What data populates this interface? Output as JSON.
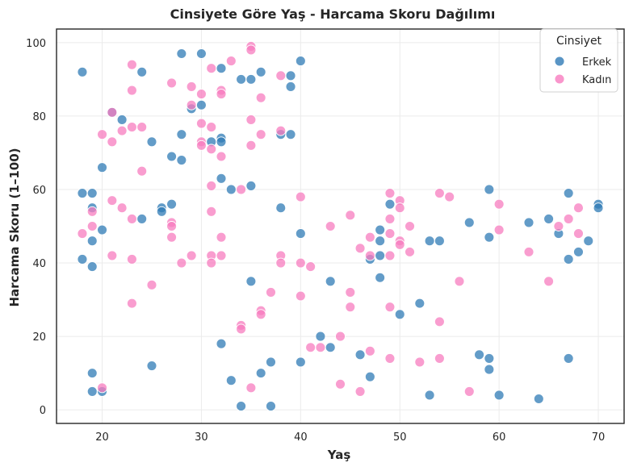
{
  "chart_data": {
    "type": "scatter",
    "title": "Cinsiyete Göre Yaş - Harcama Skoru Dağılımı",
    "xlabel": "Yaş",
    "ylabel": "Harcama Skoru (1–100)",
    "xlim": [
      15.4,
      72.6
    ],
    "ylim": [
      -3.7,
      103.7
    ],
    "x_ticks": [
      20,
      30,
      40,
      50,
      60,
      70
    ],
    "y_ticks": [
      0,
      20,
      40,
      60,
      80,
      100
    ],
    "grid": true,
    "legend": {
      "title": "Cinsiyet",
      "position": "top-right"
    },
    "series": [
      {
        "name": "Erkek",
        "color": "#2f7bb6",
        "points": [
          [
            18,
            92
          ],
          [
            18,
            59
          ],
          [
            18,
            41
          ],
          [
            19,
            59
          ],
          [
            19,
            55
          ],
          [
            19,
            46
          ],
          [
            19,
            39
          ],
          [
            19,
            10
          ],
          [
            19,
            5
          ],
          [
            20,
            66
          ],
          [
            20,
            49
          ],
          [
            20,
            5
          ],
          [
            21,
            81
          ],
          [
            22,
            79
          ],
          [
            24,
            92
          ],
          [
            24,
            52
          ],
          [
            25,
            73
          ],
          [
            25,
            12
          ],
          [
            26,
            55
          ],
          [
            26,
            54
          ],
          [
            27,
            69
          ],
          [
            27,
            56
          ],
          [
            28,
            97
          ],
          [
            28,
            75
          ],
          [
            28,
            68
          ],
          [
            29,
            82
          ],
          [
            30,
            97
          ],
          [
            30,
            83
          ],
          [
            31,
            73
          ],
          [
            32,
            93
          ],
          [
            32,
            74
          ],
          [
            32,
            73
          ],
          [
            32,
            63
          ],
          [
            32,
            18
          ],
          [
            33,
            60
          ],
          [
            33,
            8
          ],
          [
            34,
            90
          ],
          [
            34,
            1
          ],
          [
            35,
            90
          ],
          [
            35,
            61
          ],
          [
            35,
            35
          ],
          [
            36,
            92
          ],
          [
            36,
            10
          ],
          [
            37,
            13
          ],
          [
            37,
            1
          ],
          [
            38,
            75
          ],
          [
            38,
            55
          ],
          [
            39,
            91
          ],
          [
            39,
            88
          ],
          [
            39,
            75
          ],
          [
            40,
            95
          ],
          [
            40,
            48
          ],
          [
            40,
            13
          ],
          [
            42,
            20
          ],
          [
            43,
            35
          ],
          [
            43,
            17
          ],
          [
            46,
            15
          ],
          [
            47,
            41
          ],
          [
            47,
            9
          ],
          [
            48,
            49
          ],
          [
            48,
            46
          ],
          [
            48,
            42
          ],
          [
            48,
            36
          ],
          [
            49,
            56
          ],
          [
            50,
            26
          ],
          [
            52,
            29
          ],
          [
            53,
            46
          ],
          [
            53,
            4
          ],
          [
            54,
            46
          ],
          [
            57,
            51
          ],
          [
            58,
            15
          ],
          [
            59,
            60
          ],
          [
            59,
            47
          ],
          [
            59,
            14
          ],
          [
            59,
            11
          ],
          [
            60,
            4
          ],
          [
            63,
            51
          ],
          [
            64,
            3
          ],
          [
            65,
            52
          ],
          [
            66,
            48
          ],
          [
            67,
            59
          ],
          [
            67,
            41
          ],
          [
            67,
            14
          ],
          [
            68,
            43
          ],
          [
            69,
            46
          ],
          [
            70,
            56
          ],
          [
            70,
            55
          ]
        ]
      },
      {
        "name": "Kadın",
        "color": "#f77cbf",
        "points": [
          [
            18,
            48
          ],
          [
            19,
            54
          ],
          [
            19,
            50
          ],
          [
            20,
            75
          ],
          [
            20,
            6
          ],
          [
            21,
            81
          ],
          [
            21,
            73
          ],
          [
            21,
            57
          ],
          [
            21,
            42
          ],
          [
            22,
            76
          ],
          [
            22,
            55
          ],
          [
            23,
            94
          ],
          [
            23,
            87
          ],
          [
            23,
            77
          ],
          [
            23,
            52
          ],
          [
            23,
            41
          ],
          [
            23,
            29
          ],
          [
            24,
            77
          ],
          [
            24,
            65
          ],
          [
            25,
            34
          ],
          [
            27,
            89
          ],
          [
            27,
            51
          ],
          [
            27,
            50
          ],
          [
            27,
            47
          ],
          [
            28,
            40
          ],
          [
            29,
            88
          ],
          [
            29,
            83
          ],
          [
            29,
            42
          ],
          [
            30,
            86
          ],
          [
            30,
            78
          ],
          [
            30,
            73
          ],
          [
            30,
            72
          ],
          [
            31,
            93
          ],
          [
            31,
            77
          ],
          [
            31,
            71
          ],
          [
            31,
            61
          ],
          [
            31,
            54
          ],
          [
            31,
            42
          ],
          [
            31,
            40
          ],
          [
            32,
            87
          ],
          [
            32,
            86
          ],
          [
            32,
            69
          ],
          [
            32,
            47
          ],
          [
            32,
            42
          ],
          [
            33,
            95
          ],
          [
            34,
            60
          ],
          [
            34,
            23
          ],
          [
            34,
            22
          ],
          [
            35,
            99
          ],
          [
            35,
            98
          ],
          [
            35,
            79
          ],
          [
            35,
            72
          ],
          [
            35,
            6
          ],
          [
            36,
            85
          ],
          [
            36,
            75
          ],
          [
            36,
            27
          ],
          [
            36,
            26
          ],
          [
            37,
            32
          ],
          [
            38,
            91
          ],
          [
            38,
            76
          ],
          [
            38,
            42
          ],
          [
            38,
            40
          ],
          [
            40,
            58
          ],
          [
            40,
            40
          ],
          [
            40,
            31
          ],
          [
            41,
            39
          ],
          [
            41,
            17
          ],
          [
            42,
            17
          ],
          [
            43,
            50
          ],
          [
            44,
            20
          ],
          [
            44,
            7
          ],
          [
            45,
            53
          ],
          [
            45,
            32
          ],
          [
            45,
            28
          ],
          [
            46,
            44
          ],
          [
            46,
            5
          ],
          [
            47,
            47
          ],
          [
            47,
            42
          ],
          [
            47,
            16
          ],
          [
            49,
            59
          ],
          [
            49,
            52
          ],
          [
            49,
            48
          ],
          [
            49,
            42
          ],
          [
            49,
            28
          ],
          [
            49,
            14
          ],
          [
            50,
            57
          ],
          [
            50,
            55
          ],
          [
            50,
            46
          ],
          [
            50,
            45
          ],
          [
            51,
            50
          ],
          [
            51,
            43
          ],
          [
            52,
            13
          ],
          [
            54,
            59
          ],
          [
            54,
            24
          ],
          [
            54,
            14
          ],
          [
            55,
            58
          ],
          [
            56,
            35
          ],
          [
            57,
            5
          ],
          [
            60,
            56
          ],
          [
            60,
            49
          ],
          [
            63,
            43
          ],
          [
            65,
            35
          ],
          [
            66,
            50
          ],
          [
            67,
            52
          ],
          [
            68,
            55
          ],
          [
            68,
            48
          ]
        ]
      }
    ]
  }
}
